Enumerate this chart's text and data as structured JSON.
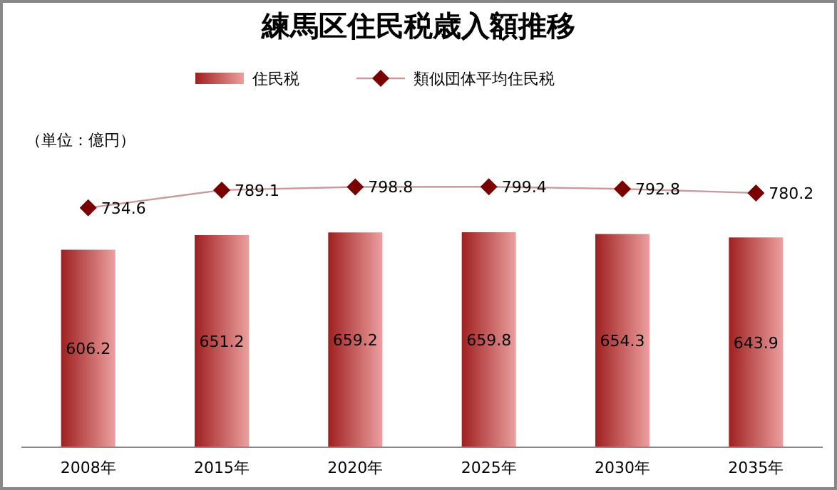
{
  "chart_data": {
    "type": "bar",
    "title": "練馬区住民税歳入額推移",
    "categories": [
      "2008年",
      "2015年",
      "2020年",
      "2025年",
      "2030年",
      "2035年"
    ],
    "series": [
      {
        "name": "住民税",
        "color": "#d42a2a",
        "values": [
          606.2,
          651.2,
          659.2,
          659.8,
          654.3,
          643.9
        ]
      },
      {
        "name": "類似団体平均住民税",
        "type": "line",
        "color": "#7a0000",
        "values": [
          734.6,
          789.1,
          798.8,
          799.4,
          792.8,
          780.2
        ]
      }
    ],
    "marker": "diamond",
    "data_labels": true,
    "legend": "top",
    "annotations": [
      "（単位：億円）"
    ]
  }
}
